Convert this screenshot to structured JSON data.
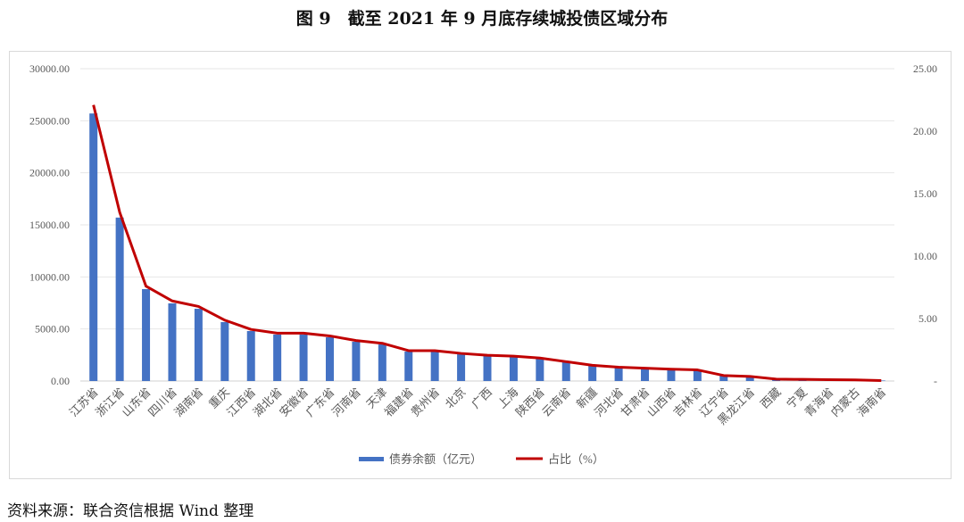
{
  "title": "图 9　截至 2021 年 9 月底存续城投债区域分布",
  "source": "资料来源：联合资信根据 Wind 整理",
  "chart_data": {
    "type": "bar+line",
    "title": "图 9　截至 2021 年 9 月底存续城投债区域分布",
    "categories": [
      "江苏省",
      "浙江省",
      "山东省",
      "四川省",
      "湖南省",
      "重庆",
      "江西省",
      "湖北省",
      "安徽省",
      "广东省",
      "河南省",
      "天津",
      "福建省",
      "贵州省",
      "北京",
      "广西",
      "上海",
      "陕西省",
      "云南省",
      "新疆",
      "河北省",
      "甘肃省",
      "山西省",
      "吉林省",
      "辽宁省",
      "黑龙江省",
      "西藏",
      "宁夏",
      "青海省",
      "内蒙古",
      "海南省"
    ],
    "series": [
      {
        "name": "债券余额（亿元）",
        "type": "bar",
        "axis": "left",
        "color": "#4472C4",
        "values": [
          25700,
          15700,
          8830,
          7460,
          6940,
          5660,
          4800,
          4460,
          4460,
          4200,
          3770,
          3510,
          2830,
          2830,
          2570,
          2400,
          2310,
          2140,
          1800,
          1460,
          1290,
          1200,
          1110,
          1030,
          510,
          430,
          170,
          150,
          130,
          100,
          50
        ]
      },
      {
        "name": "占比（%）",
        "type": "line",
        "axis": "right",
        "color": "#C00000",
        "values": [
          22.1,
          13.5,
          7.59,
          6.41,
          5.97,
          4.87,
          4.13,
          3.83,
          3.83,
          3.61,
          3.24,
          3.02,
          2.43,
          2.43,
          2.21,
          2.06,
          1.99,
          1.84,
          1.55,
          1.26,
          1.11,
          1.03,
          0.95,
          0.89,
          0.44,
          0.37,
          0.15,
          0.13,
          0.11,
          0.09,
          0.04
        ]
      }
    ],
    "left_axis": {
      "ylim": [
        0,
        30000
      ],
      "ticks": [
        "0.00",
        "5000.00",
        "10000.00",
        "15000.00",
        "20000.00",
        "25000.00",
        "30000.00"
      ]
    },
    "right_axis": {
      "ylim": [
        0,
        25
      ],
      "ticks": [
        "-",
        "5.00",
        "10.00",
        "15.00",
        "20.00",
        "25.00"
      ]
    },
    "grid": true,
    "legend": "bottom"
  }
}
